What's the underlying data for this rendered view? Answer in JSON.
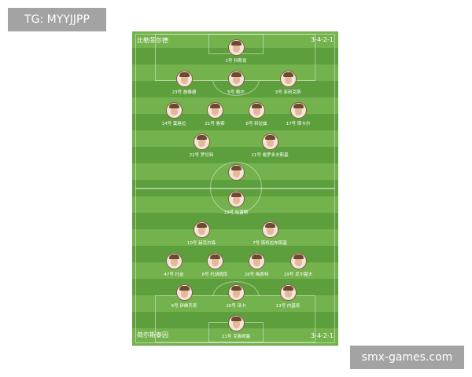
{
  "watermark_top": "TG: MYYJJPP",
  "watermark_bottom": "smx-games.com",
  "colors": {
    "pitch_light": "#73b24c",
    "pitch_dark": "#5e9f3d",
    "label_bg": "#a3a3a3"
  },
  "home": {
    "team": "比勒菲尔德",
    "formation": "3-4-2-1",
    "rows": [
      [
        {
          "label": "1号 科斯肯"
        }
      ],
      [
        {
          "label": "23号 施泰德"
        },
        {
          "label": "5号 鲍尔"
        },
        {
          "label": "3号 菲利克斯"
        }
      ],
      [
        {
          "label": "14号 莫格拉"
        },
        {
          "label": "21号 鲁索"
        },
        {
          "label": "6号 科拉兹"
        },
        {
          "label": "17号 斯卡尔"
        }
      ],
      [
        {
          "label": "22号 罗切特"
        },
        {
          "label": "11号 格罗多夫斯基"
        }
      ],
      [
        {
          "label": ""
        }
      ]
    ]
  },
  "away": {
    "team": "荷尔斯泰因",
    "formation": "3-4-2-1",
    "rows": [
      [
        {
          "label": "19号 哈雷斯"
        }
      ],
      [
        {
          "label": "10号 赫克尔森"
        },
        {
          "label": "7号 斯科拉布斯基"
        }
      ],
      [
        {
          "label": "47号 托金"
        },
        {
          "label": "8号 托胡姆库"
        },
        {
          "label": "28号 梅费特"
        },
        {
          "label": "29号 尼尔霍夫"
        }
      ],
      [
        {
          "label": "6号 伊维齐奇"
        },
        {
          "label": "26号 泽卡"
        },
        {
          "label": "13号 内基奇"
        }
      ],
      [
        {
          "label": "21号 克鲁姆塞"
        }
      ]
    ]
  }
}
